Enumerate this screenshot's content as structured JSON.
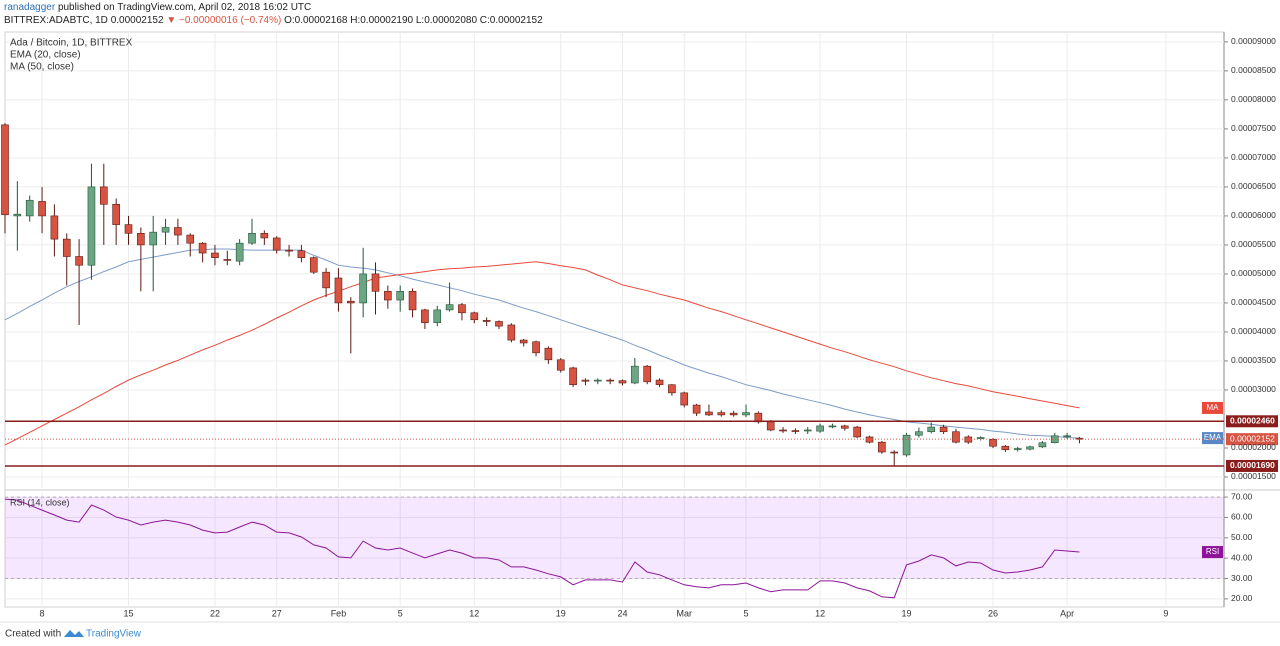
{
  "header": {
    "author": "ranadagger",
    "published": "published on TradingView.com, April 02, 2018 16:02 UTC",
    "symbol": "BITTREX:ADABTC, 1D",
    "price": "0.00002152",
    "change": "▼ −0.00000016 (−0.74%)",
    "ohlc": "O:0.00002168 H:0.00002190 L:0.00002080 C:0.00002152"
  },
  "footer": {
    "created": "Created with",
    "brand": "TradingView"
  },
  "chart_data": [
    {
      "type": "candlestick",
      "title": "Ada / Bitcoin, 1D, BITTREX",
      "grid": true,
      "up_color": "#6ba583",
      "down_color": "#d75442",
      "categories": [
        null,
        null,
        null,
        "8",
        null,
        null,
        null,
        null,
        null,
        null,
        "15",
        null,
        null,
        null,
        null,
        null,
        null,
        "22",
        null,
        null,
        null,
        null,
        "27",
        null,
        null,
        null,
        null,
        "Feb",
        null,
        null,
        null,
        null,
        "5",
        null,
        null,
        null,
        null,
        null,
        "12",
        null,
        null,
        null,
        null,
        null,
        null,
        "19",
        null,
        null,
        null,
        null,
        "24",
        null,
        null,
        null,
        null,
        "Mar",
        null,
        null,
        null,
        null,
        "5",
        null,
        null,
        null,
        null,
        null,
        "12",
        null,
        null,
        null,
        null,
        null,
        null,
        "19",
        null,
        null,
        null,
        null,
        null,
        null,
        "26",
        null,
        null,
        null,
        null,
        null,
        "Apr",
        null,
        null,
        null,
        null,
        null,
        null,
        null,
        "9"
      ],
      "open": [
        7.57e-05,
        6e-05,
        6e-05,
        6.25e-05,
        6e-05,
        5.6e-05,
        5.3e-05,
        5.15e-05,
        6.5e-05,
        6.2e-05,
        5.85e-05,
        5.7e-05,
        5.5e-05,
        5.72e-05,
        5.8e-05,
        5.67e-05,
        5.53e-05,
        5.36e-05,
        5.25e-05,
        5.22e-05,
        5.53e-05,
        5.7e-05,
        5.62e-05,
        5.41e-05,
        5.4e-05,
        5.28e-05,
        5.03e-05,
        4.93e-05,
        4.53e-05,
        4.5e-05,
        5e-05,
        4.7e-05,
        4.55e-05,
        4.7e-05,
        4.38e-05,
        4.16e-05,
        4.38e-05,
        4.47e-05,
        4.33e-05,
        4.2e-05,
        4.18e-05,
        4.12e-05,
        3.86e-05,
        3.83e-05,
        3.72e-05,
        3.52e-05,
        3.38e-05,
        3.17e-05,
        3.16e-05,
        3.17e-05,
        3.16e-05,
        3.12e-05,
        3.41e-05,
        3.17e-05,
        3.09e-05,
        2.95e-05,
        2.74e-05,
        2.62e-05,
        2.61e-05,
        2.6e-05,
        2.57e-05,
        2.6e-05,
        2.45e-05,
        2.31e-05,
        2.3e-05,
        2.3e-05,
        2.29e-05,
        2.38e-05,
        2.38e-05,
        2.36e-05,
        2.19e-05,
        2.1e-05,
        1.93e-05,
        1.88e-05,
        2.22e-05,
        2.28e-05,
        2.36e-05,
        2.28e-05,
        2.19e-05,
        2.16e-05,
        2.15e-05,
        2.03e-05,
        1.98e-05,
        1.98e-05,
        2.02e-05,
        2.09e-05,
        2.21e-05,
        2.168e-05,
        null,
        null,
        null,
        null,
        null,
        null,
        null
      ],
      "high": [
        7.6e-05,
        6.6e-05,
        6.35e-05,
        6.5e-05,
        6.2e-05,
        5.7e-05,
        5.6e-05,
        6.9e-05,
        6.9e-05,
        6.3e-05,
        6e-05,
        5.8e-05,
        6e-05,
        5.95e-05,
        5.95e-05,
        5.7e-05,
        5.55e-05,
        5.5e-05,
        5.4e-05,
        5.6e-05,
        5.95e-05,
        5.75e-05,
        5.65e-05,
        5.5e-05,
        5.5e-05,
        5.3e-05,
        5.1e-05,
        5.1e-05,
        4.6e-05,
        5.45e-05,
        5.2e-05,
        4.8e-05,
        4.8e-05,
        4.75e-05,
        4.4e-05,
        4.45e-05,
        4.85e-05,
        4.5e-05,
        4.35e-05,
        4.25e-05,
        4.2e-05,
        4.15e-05,
        3.88e-05,
        3.85e-05,
        3.75e-05,
        3.55e-05,
        3.4e-05,
        3.2e-05,
        3.2e-05,
        3.2e-05,
        3.18e-05,
        3.55e-05,
        3.43e-05,
        3.2e-05,
        3.1e-05,
        2.97e-05,
        2.76e-05,
        2.75e-05,
        2.65e-05,
        2.64e-05,
        2.75e-05,
        2.63e-05,
        2.48e-05,
        2.36e-05,
        2.34e-05,
        2.36e-05,
        2.42e-05,
        2.42e-05,
        2.4e-05,
        2.38e-05,
        2.21e-05,
        2.12e-05,
        1.96e-05,
        2.26e-05,
        2.35e-05,
        2.44e-05,
        2.4e-05,
        2.33e-05,
        2.22e-05,
        2.2e-05,
        2.17e-05,
        2.05e-05,
        2.02e-05,
        2.04e-05,
        2.12e-05,
        2.26e-05,
        2.26e-05,
        2.19e-05,
        null,
        null,
        null,
        null,
        null,
        null,
        null
      ],
      "low": [
        5.7e-05,
        5.4e-05,
        5.9e-05,
        5.7e-05,
        5.3e-05,
        4.8e-05,
        4.12e-05,
        4.9e-05,
        5.5e-05,
        5.5e-05,
        5.5e-05,
        4.7e-05,
        4.7e-05,
        5.5e-05,
        5.5e-05,
        5.3e-05,
        5.2e-05,
        5.15e-05,
        5.15e-05,
        5.15e-05,
        5.5e-05,
        5.5e-05,
        5.35e-05,
        5.3e-05,
        5.2e-05,
        5e-05,
        4.6e-05,
        4.35e-05,
        3.63e-05,
        4.25e-05,
        4.3e-05,
        4.4e-05,
        4.35e-05,
        4.25e-05,
        4.05e-05,
        4.1e-05,
        4.35e-05,
        4.2e-05,
        4.15e-05,
        4.1e-05,
        4.05e-05,
        3.82e-05,
        3.75e-05,
        3.58e-05,
        3.45e-05,
        3.3e-05,
        3.05e-05,
        3.08e-05,
        3.1e-05,
        3.1e-05,
        3.08e-05,
        3.1e-05,
        3.1e-05,
        3.05e-05,
        2.9e-05,
        2.7e-05,
        2.55e-05,
        2.55e-05,
        2.54e-05,
        2.54e-05,
        2.53e-05,
        2.42e-05,
        2.29e-05,
        2.26e-05,
        2.24e-05,
        2.24e-05,
        2.26e-05,
        2.34e-05,
        2.3e-05,
        2.17e-05,
        2.08e-05,
        1.9e-05,
        1.69e-05,
        1.85e-05,
        2.18e-05,
        2.25e-05,
        2.24e-05,
        2.08e-05,
        2.07e-05,
        2.13e-05,
        2e-05,
        1.93e-05,
        1.94e-05,
        1.96e-05,
        2e-05,
        2.08e-05,
        2.16e-05,
        2.08e-05,
        null,
        null,
        null,
        null,
        null,
        null,
        null
      ],
      "close": [
        6.02e-05,
        6.03e-05,
        6.27e-05,
        6e-05,
        5.6e-05,
        5.3e-05,
        5.15e-05,
        6.5e-05,
        6.2e-05,
        5.85e-05,
        5.7e-05,
        5.5e-05,
        5.72e-05,
        5.8e-05,
        5.67e-05,
        5.53e-05,
        5.36e-05,
        5.28e-05,
        5.24e-05,
        5.53e-05,
        5.7e-05,
        5.62e-05,
        5.41e-05,
        5.4e-05,
        5.28e-05,
        5.03e-05,
        4.76e-05,
        4.5e-05,
        4.5e-05,
        5e-05,
        4.7e-05,
        4.55e-05,
        4.7e-05,
        4.38e-05,
        4.16e-05,
        4.38e-05,
        4.47e-05,
        4.33e-05,
        4.21e-05,
        4.18e-05,
        4.1e-05,
        3.86e-05,
        3.81e-05,
        3.64e-05,
        3.52e-05,
        3.34e-05,
        3.09e-05,
        3.15e-05,
        3.17e-05,
        3.16e-05,
        3.12e-05,
        3.41e-05,
        3.14e-05,
        3.09e-05,
        2.95e-05,
        2.74e-05,
        2.6e-05,
        2.57e-05,
        2.57e-05,
        2.57e-05,
        2.61e-05,
        2.45e-05,
        2.31e-05,
        2.3e-05,
        2.29e-05,
        2.31e-05,
        2.38e-05,
        2.38e-05,
        2.34e-05,
        2.19e-05,
        2.1e-05,
        1.93e-05,
        1.92e-05,
        2.22e-05,
        2.28e-05,
        2.36e-05,
        2.28e-05,
        2.1e-05,
        2.1e-05,
        2.18e-05,
        2.03e-05,
        1.97e-05,
        1.99e-05,
        2.02e-05,
        2.09e-05,
        2.21e-05,
        2.21e-05,
        2.152e-05,
        null,
        null,
        null,
        null,
        null,
        null,
        null
      ],
      "lines": [
        {
          "name": "EMA (20, close)",
          "badge": "EMA",
          "color": "#7d9cc8",
          "values": [
            4.21e-05,
            4.32e-05,
            4.44e-05,
            4.55e-05,
            4.67e-05,
            4.78e-05,
            4.87e-05,
            4.95e-05,
            5.04e-05,
            5.12e-05,
            5.21e-05,
            5.25e-05,
            5.29e-05,
            5.33e-05,
            5.37e-05,
            5.41e-05,
            5.42e-05,
            5.43e-05,
            5.43e-05,
            5.42e-05,
            5.41e-05,
            5.41e-05,
            5.41e-05,
            5.41e-05,
            5.41e-05,
            5.32e-05,
            5.24e-05,
            5.15e-05,
            5.12e-05,
            5.1e-05,
            5.07e-05,
            5.02e-05,
            4.97e-05,
            4.91e-05,
            4.86e-05,
            4.81e-05,
            4.76e-05,
            4.71e-05,
            4.65e-05,
            4.6e-05,
            4.55e-05,
            4.48e-05,
            4.41e-05,
            4.35e-05,
            4.28e-05,
            4.21e-05,
            4.14e-05,
            4.07e-05,
            4e-05,
            3.93e-05,
            3.86e-05,
            3.77e-05,
            3.69e-05,
            3.6e-05,
            3.52e-05,
            3.43e-05,
            3.36e-05,
            3.29e-05,
            3.23e-05,
            3.16e-05,
            3.09e-05,
            3.04e-05,
            2.99e-05,
            2.93e-05,
            2.88e-05,
            2.83e-05,
            2.78e-05,
            2.73e-05,
            2.67e-05,
            2.62e-05,
            2.57e-05,
            2.53e-05,
            2.49e-05,
            2.45e-05,
            2.43e-05,
            2.41e-05,
            2.38e-05,
            2.36e-05,
            2.34e-05,
            2.32e-05,
            2.29e-05,
            2.27e-05,
            2.24e-05,
            2.22e-05,
            2.21e-05,
            2.2e-05,
            2.18e-05,
            2.17e-05,
            null,
            null,
            null,
            null,
            null,
            null,
            null
          ]
        },
        {
          "name": "MA (50, close)",
          "badge": "MA",
          "color": "#e8493a",
          "values": [
            2.05e-05,
            2.16e-05,
            2.27e-05,
            2.38e-05,
            2.49e-05,
            2.6e-05,
            2.71e-05,
            2.83e-05,
            2.94e-05,
            3.06e-05,
            3.17e-05,
            3.26e-05,
            3.34e-05,
            3.43e-05,
            3.51e-05,
            3.6e-05,
            3.69e-05,
            3.77e-05,
            3.86e-05,
            3.94e-05,
            4.03e-05,
            4.13e-05,
            4.24e-05,
            4.34e-05,
            4.45e-05,
            4.55e-05,
            4.63e-05,
            4.7e-05,
            4.78e-05,
            4.85e-05,
            4.93e-05,
            4.96e-05,
            4.99e-05,
            5.01e-05,
            5.04e-05,
            5.07e-05,
            5.09e-05,
            5.1e-05,
            5.12e-05,
            5.13e-05,
            5.15e-05,
            5.17e-05,
            5.19e-05,
            5.21e-05,
            5.18e-05,
            5.14e-05,
            5.11e-05,
            5.07e-05,
            4.98e-05,
            4.9e-05,
            4.81e-05,
            4.76e-05,
            4.71e-05,
            4.65e-05,
            4.6e-05,
            4.55e-05,
            4.48e-05,
            4.41e-05,
            4.35e-05,
            4.28e-05,
            4.21e-05,
            4.14e-05,
            4.07e-05,
            4e-05,
            3.93e-05,
            3.86e-05,
            3.79e-05,
            3.72e-05,
            3.66e-05,
            3.59e-05,
            3.52e-05,
            3.46e-05,
            3.4e-05,
            3.33e-05,
            3.27e-05,
            3.21e-05,
            3.16e-05,
            3.11e-05,
            3.07e-05,
            3.02e-05,
            2.97e-05,
            2.93e-05,
            2.89e-05,
            2.85e-05,
            2.81e-05,
            2.77e-05,
            2.73e-05,
            2.69e-05,
            null,
            null,
            null,
            null,
            null,
            null,
            null
          ]
        }
      ],
      "levels": [
        {
          "value": 2.46e-05,
          "label": "0.00002460"
        },
        {
          "value": 1.69e-05,
          "label": "0.00001690"
        }
      ],
      "level_color": "#8a1c1c",
      "last_price": {
        "value": 2.152e-05,
        "label": "0.00002152"
      },
      "ylim": [
        1.31e-05,
        9.17e-05
      ],
      "yticks": [
        {
          "value": 9e-05,
          "label": "0.00009000"
        },
        {
          "value": 8.5e-05,
          "label": "0.00008500"
        },
        {
          "value": 8e-05,
          "label": "0.00008000"
        },
        {
          "value": 7.5e-05,
          "label": "0.00007500"
        },
        {
          "value": 7e-05,
          "label": "0.00007000"
        },
        {
          "value": 6.5e-05,
          "label": "0.00006500"
        },
        {
          "value": 6e-05,
          "label": "0.00006000"
        },
        {
          "value": 5.5e-05,
          "label": "0.00005500"
        },
        {
          "value": 5e-05,
          "label": "0.00005000"
        },
        {
          "value": 4.5e-05,
          "label": "0.00004500"
        },
        {
          "value": 4e-05,
          "label": "0.00004000"
        },
        {
          "value": 3.5e-05,
          "label": "0.00003500"
        },
        {
          "value": 3e-05,
          "label": "0.00003000"
        },
        {
          "value": 2e-05,
          "label": "0.00002000"
        },
        {
          "value": 1.5e-05,
          "label": "0.00001500"
        }
      ]
    },
    {
      "type": "line",
      "grid": true,
      "series": [
        {
          "name": "RSI (14, close)",
          "badge": "RSI",
          "color": "#8e1599",
          "values": [
            69,
            68.5,
            66,
            63.6,
            61.2,
            58.7,
            57.7,
            66.1,
            63.6,
            60.2,
            58.7,
            56.3,
            57.7,
            58.7,
            57.7,
            56.3,
            53.8,
            52.4,
            52.8,
            55.3,
            57.7,
            56.3,
            52.8,
            52.4,
            50.4,
            46.5,
            45,
            40.6,
            40.1,
            48.4,
            45,
            44,
            45,
            42.5,
            40.1,
            42.1,
            44,
            42.5,
            40.1,
            40.1,
            39.1,
            35.7,
            35.7,
            34.2,
            32.3,
            30.8,
            26.9,
            29.3,
            29.3,
            29.3,
            28.3,
            38.1,
            33.2,
            31.8,
            29.3,
            26.9,
            25.9,
            25.4,
            26.9,
            26.9,
            27.8,
            25.4,
            23.5,
            24.4,
            24.4,
            24.4,
            28.8,
            28.8,
            27.8,
            25.4,
            23.9,
            21,
            20.5,
            36.7,
            38.6,
            41.6,
            40.1,
            36.2,
            38.1,
            37.6,
            34.2,
            32.7,
            33.2,
            34.2,
            35.7,
            44,
            43.5,
            43,
            null,
            null,
            null,
            null,
            null,
            null,
            null
          ]
        }
      ],
      "band": [
        30,
        70
      ],
      "ylim": [
        16,
        72.5
      ],
      "yticks": [
        {
          "value": 70,
          "label": "70.00"
        },
        {
          "value": 60,
          "label": "60.00"
        },
        {
          "value": 50,
          "label": "50.00"
        },
        {
          "value": 40,
          "label": "40.00"
        },
        {
          "value": 30,
          "label": "30.00"
        },
        {
          "value": 20,
          "label": "20.00"
        }
      ]
    }
  ]
}
